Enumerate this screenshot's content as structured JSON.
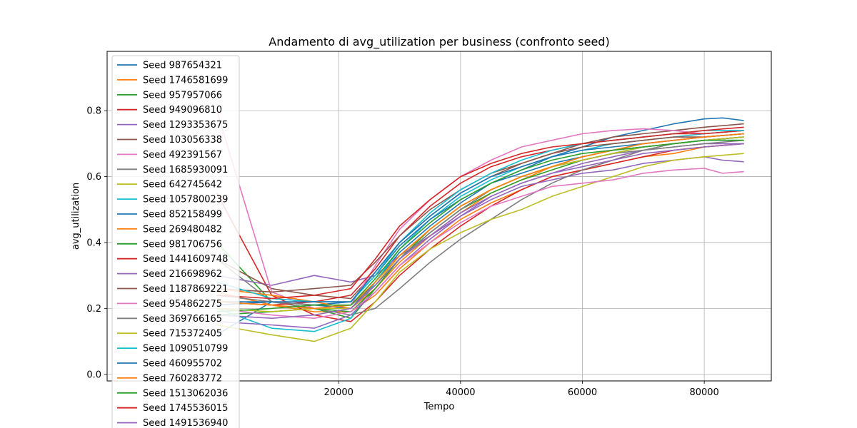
{
  "chart_data": {
    "type": "line",
    "title": "Andamento di avg_utilization per business (confronto seed)",
    "xlabel": "Tempo",
    "ylabel": "avg_utilization",
    "xlim": [
      -18000,
      91000
    ],
    "ylim": [
      -0.02,
      0.98
    ],
    "xticks": [
      20000,
      40000,
      60000,
      80000
    ],
    "yticks": [
      0.0,
      0.2,
      0.4,
      0.6,
      0.8
    ],
    "xtick_labels": [
      "20000",
      "40000",
      "60000",
      "80000"
    ],
    "ytick_labels": [
      "0.0",
      "0.2",
      "0.4",
      "0.6",
      "0.8"
    ],
    "grid": true,
    "legend_placement": "upper-left (overflowing bottom)",
    "series": [
      {
        "name": "Seed 987654321",
        "color": "#1f77b4",
        "x": [
          0,
          9000,
          16000,
          22000,
          26000,
          30000,
          35000,
          40000,
          45000,
          50000,
          55000,
          60000,
          65000,
          70000,
          75000,
          80000,
          83000,
          86500
        ],
        "values": [
          0.12,
          0.22,
          0.21,
          0.2,
          0.28,
          0.37,
          0.45,
          0.52,
          0.58,
          0.62,
          0.66,
          0.69,
          0.72,
          0.74,
          0.76,
          0.775,
          0.778,
          0.77
        ]
      },
      {
        "name": "Seed 1746581699",
        "color": "#ff7f0e",
        "x": [
          0,
          9000,
          16000,
          22000,
          26000,
          30000,
          35000,
          40000,
          45000,
          50000,
          55000,
          60000,
          65000,
          70000,
          75000,
          80000,
          86500
        ],
        "values": [
          0.25,
          0.21,
          0.19,
          0.19,
          0.24,
          0.32,
          0.4,
          0.47,
          0.52,
          0.56,
          0.6,
          0.62,
          0.64,
          0.66,
          0.67,
          0.69,
          0.7
        ]
      },
      {
        "name": "Seed 957957066",
        "color": "#2ca02c",
        "x": [
          0,
          9000,
          16000,
          22000,
          26000,
          30000,
          35000,
          40000,
          45000,
          50000,
          55000,
          60000,
          65000,
          70000,
          75000,
          80000,
          86500
        ],
        "values": [
          0.4,
          0.22,
          0.2,
          0.17,
          0.26,
          0.35,
          0.44,
          0.51,
          0.56,
          0.6,
          0.63,
          0.65,
          0.67,
          0.69,
          0.7,
          0.71,
          0.72
        ]
      },
      {
        "name": "Seed 949096810",
        "color": "#d62728",
        "x": [
          0,
          9000,
          16000,
          22000,
          26000,
          30000,
          35000,
          40000,
          45000,
          50000,
          55000,
          60000,
          65000,
          70000,
          75000,
          80000,
          86500
        ],
        "values": [
          0.55,
          0.24,
          0.18,
          0.16,
          0.22,
          0.3,
          0.38,
          0.45,
          0.51,
          0.56,
          0.6,
          0.62,
          0.64,
          0.66,
          0.68,
          0.69,
          0.7
        ]
      },
      {
        "name": "Seed 1293353675",
        "color": "#9467bd",
        "x": [
          0,
          9000,
          16000,
          22000,
          26000,
          30000,
          35000,
          40000,
          45000,
          50000,
          55000,
          60000,
          65000,
          70000,
          75000,
          80000,
          83000,
          86500
        ],
        "values": [
          0.3,
          0.27,
          0.3,
          0.28,
          0.3,
          0.36,
          0.42,
          0.48,
          0.53,
          0.57,
          0.59,
          0.61,
          0.62,
          0.64,
          0.65,
          0.66,
          0.65,
          0.645
        ]
      },
      {
        "name": "Seed 103056338",
        "color": "#8c564b",
        "x": [
          0,
          9000,
          16000,
          22000,
          26000,
          30000,
          35000,
          40000,
          45000,
          50000,
          55000,
          60000,
          65000,
          70000,
          75000,
          80000,
          86500
        ],
        "values": [
          0.35,
          0.26,
          0.24,
          0.23,
          0.31,
          0.4,
          0.48,
          0.55,
          0.6,
          0.64,
          0.67,
          0.7,
          0.72,
          0.73,
          0.74,
          0.75,
          0.76
        ]
      },
      {
        "name": "Seed 492391567",
        "color": "#e377c2",
        "x": [
          0,
          9000,
          16000,
          22000,
          26000,
          30000,
          35000,
          40000,
          45000,
          50000,
          55000,
          60000,
          65000,
          70000,
          75000,
          80000,
          86500
        ],
        "values": [
          0.8,
          0.25,
          0.2,
          0.21,
          0.33,
          0.44,
          0.53,
          0.6,
          0.65,
          0.69,
          0.71,
          0.73,
          0.74,
          0.745,
          0.74,
          0.73,
          0.74
        ]
      },
      {
        "name": "Seed 1685930091",
        "color": "#7f7f7f",
        "x": [
          0,
          9000,
          16000,
          22000,
          26000,
          30000,
          35000,
          40000,
          45000,
          50000,
          55000,
          60000,
          65000,
          70000,
          75000,
          80000,
          86500
        ],
        "values": [
          0.35,
          0.22,
          0.2,
          0.18,
          0.2,
          0.26,
          0.34,
          0.41,
          0.47,
          0.53,
          0.58,
          0.62,
          0.65,
          0.68,
          0.7,
          0.71,
          0.72
        ]
      },
      {
        "name": "Seed 642745642",
        "color": "#bcbd22",
        "x": [
          0,
          9000,
          16000,
          22000,
          26000,
          30000,
          35000,
          40000,
          45000,
          50000,
          55000,
          60000,
          65000,
          70000,
          75000,
          80000,
          86500
        ],
        "values": [
          0.15,
          0.12,
          0.1,
          0.14,
          0.22,
          0.31,
          0.38,
          0.43,
          0.47,
          0.5,
          0.54,
          0.57,
          0.6,
          0.63,
          0.65,
          0.66,
          0.67
        ]
      },
      {
        "name": "Seed 1057800239",
        "color": "#17becf",
        "x": [
          0,
          9000,
          16000,
          22000,
          26000,
          30000,
          35000,
          40000,
          45000,
          50000,
          55000,
          60000,
          65000,
          70000,
          75000,
          80000,
          86500
        ],
        "values": [
          0.2,
          0.14,
          0.13,
          0.17,
          0.28,
          0.38,
          0.47,
          0.54,
          0.59,
          0.63,
          0.66,
          0.68,
          0.7,
          0.71,
          0.72,
          0.73,
          0.74
        ]
      },
      {
        "name": "Seed 852158499",
        "color": "#1f77b4",
        "x": [
          0,
          9000,
          16000,
          22000,
          26000,
          30000,
          35000,
          40000,
          45000,
          50000,
          55000,
          60000,
          65000,
          70000,
          75000,
          80000,
          86500
        ],
        "values": [
          0.22,
          0.22,
          0.21,
          0.22,
          0.3,
          0.39,
          0.47,
          0.53,
          0.58,
          0.61,
          0.64,
          0.66,
          0.68,
          0.69,
          0.7,
          0.71,
          0.72
        ]
      },
      {
        "name": "Seed 269480482",
        "color": "#ff7f0e",
        "x": [
          0,
          9000,
          16000,
          22000,
          26000,
          30000,
          35000,
          40000,
          45000,
          50000,
          55000,
          60000,
          65000,
          70000,
          75000,
          80000,
          86500
        ],
        "values": [
          0.26,
          0.24,
          0.22,
          0.2,
          0.26,
          0.34,
          0.42,
          0.49,
          0.55,
          0.59,
          0.63,
          0.66,
          0.68,
          0.7,
          0.71,
          0.72,
          0.73
        ]
      },
      {
        "name": "Seed 981706756",
        "color": "#2ca02c",
        "x": [
          0,
          9000,
          16000,
          22000,
          26000,
          30000,
          35000,
          40000,
          45000,
          50000,
          55000,
          60000,
          65000,
          70000,
          75000,
          80000,
          86500
        ],
        "values": [
          0.18,
          0.19,
          0.2,
          0.19,
          0.26,
          0.35,
          0.43,
          0.5,
          0.55,
          0.59,
          0.62,
          0.65,
          0.67,
          0.69,
          0.7,
          0.71,
          0.71
        ]
      },
      {
        "name": "Seed 1441609748",
        "color": "#d62728",
        "x": [
          0,
          9000,
          16000,
          22000,
          26000,
          30000,
          35000,
          40000,
          45000,
          50000,
          55000,
          60000,
          65000,
          70000,
          75000,
          80000,
          86500
        ],
        "values": [
          0.22,
          0.21,
          0.22,
          0.24,
          0.32,
          0.42,
          0.51,
          0.58,
          0.63,
          0.66,
          0.68,
          0.7,
          0.71,
          0.72,
          0.73,
          0.73,
          0.74
        ]
      },
      {
        "name": "Seed 216698962",
        "color": "#9467bd",
        "x": [
          0,
          9000,
          16000,
          22000,
          26000,
          30000,
          35000,
          40000,
          45000,
          50000,
          55000,
          60000,
          65000,
          70000,
          75000,
          80000,
          86500
        ],
        "values": [
          0.16,
          0.15,
          0.14,
          0.18,
          0.25,
          0.33,
          0.41,
          0.48,
          0.54,
          0.58,
          0.61,
          0.64,
          0.66,
          0.68,
          0.69,
          0.7,
          0.7
        ]
      },
      {
        "name": "Seed 1187869221",
        "color": "#8c564b",
        "x": [
          0,
          9000,
          16000,
          22000,
          26000,
          30000,
          35000,
          40000,
          45000,
          50000,
          55000,
          60000,
          65000,
          70000,
          75000,
          80000,
          86500
        ],
        "values": [
          0.26,
          0.25,
          0.26,
          0.27,
          0.34,
          0.42,
          0.5,
          0.56,
          0.61,
          0.64,
          0.67,
          0.69,
          0.7,
          0.71,
          0.72,
          0.72,
          0.73
        ]
      },
      {
        "name": "Seed 954862275",
        "color": "#e377c2",
        "x": [
          0,
          9000,
          16000,
          22000,
          26000,
          30000,
          35000,
          40000,
          45000,
          50000,
          55000,
          60000,
          65000,
          70000,
          75000,
          80000,
          83000,
          86500
        ],
        "values": [
          0.2,
          0.18,
          0.17,
          0.19,
          0.25,
          0.33,
          0.4,
          0.46,
          0.51,
          0.54,
          0.57,
          0.58,
          0.59,
          0.61,
          0.62,
          0.625,
          0.61,
          0.615
        ]
      },
      {
        "name": "Seed 369766165",
        "color": "#7f7f7f",
        "x": [
          0,
          9000,
          16000,
          22000,
          26000,
          30000,
          35000,
          40000,
          45000,
          50000,
          55000,
          60000,
          65000,
          70000,
          75000,
          80000,
          86500
        ],
        "values": [
          0.24,
          0.22,
          0.21,
          0.21,
          0.27,
          0.35,
          0.43,
          0.5,
          0.56,
          0.6,
          0.63,
          0.65,
          0.67,
          0.68,
          0.69,
          0.7,
          0.71
        ]
      },
      {
        "name": "Seed 715372405",
        "color": "#bcbd22",
        "x": [
          0,
          9000,
          16000,
          22000,
          26000,
          30000,
          35000,
          40000,
          45000,
          50000,
          55000,
          60000,
          65000,
          70000,
          75000,
          80000,
          86500
        ],
        "values": [
          0.2,
          0.19,
          0.2,
          0.2,
          0.27,
          0.36,
          0.44,
          0.51,
          0.56,
          0.6,
          0.63,
          0.65,
          0.67,
          0.69,
          0.7,
          0.71,
          0.72
        ]
      },
      {
        "name": "Seed 1090510799",
        "color": "#17becf",
        "x": [
          0,
          9000,
          16000,
          22000,
          26000,
          30000,
          35000,
          40000,
          45000,
          50000,
          55000,
          60000,
          65000,
          70000,
          75000,
          80000,
          86500
        ],
        "values": [
          0.28,
          0.23,
          0.22,
          0.22,
          0.3,
          0.4,
          0.49,
          0.56,
          0.61,
          0.65,
          0.68,
          0.7,
          0.71,
          0.72,
          0.73,
          0.74,
          0.74
        ]
      },
      {
        "name": "Seed 460955702",
        "color": "#1f77b4",
        "x": [
          0,
          9000,
          16000,
          22000,
          26000,
          30000,
          35000,
          40000,
          45000,
          50000,
          55000,
          60000,
          65000,
          70000,
          75000,
          80000,
          86500
        ],
        "values": [
          0.21,
          0.22,
          0.22,
          0.22,
          0.31,
          0.4,
          0.48,
          0.55,
          0.6,
          0.63,
          0.66,
          0.68,
          0.69,
          0.7,
          0.71,
          0.72,
          0.73
        ]
      },
      {
        "name": "Seed 760283772",
        "color": "#ff7f0e",
        "x": [
          0,
          9000,
          16000,
          22000,
          26000,
          30000,
          35000,
          40000,
          45000,
          50000,
          55000,
          60000,
          65000,
          70000,
          75000,
          80000,
          86500
        ],
        "values": [
          0.22,
          0.21,
          0.2,
          0.21,
          0.28,
          0.36,
          0.44,
          0.51,
          0.56,
          0.6,
          0.63,
          0.66,
          0.68,
          0.7,
          0.71,
          0.72,
          0.73
        ]
      },
      {
        "name": "Seed 1513062036",
        "color": "#2ca02c",
        "x": [
          0,
          9000,
          16000,
          22000,
          26000,
          30000,
          35000,
          40000,
          45000,
          50000,
          55000,
          60000,
          65000,
          70000,
          75000,
          80000,
          86500
        ],
        "values": [
          0.19,
          0.2,
          0.21,
          0.21,
          0.29,
          0.38,
          0.46,
          0.53,
          0.58,
          0.62,
          0.65,
          0.67,
          0.68,
          0.69,
          0.7,
          0.71,
          0.71
        ]
      },
      {
        "name": "Seed 1745536015",
        "color": "#d62728",
        "x": [
          0,
          9000,
          16000,
          22000,
          26000,
          30000,
          35000,
          40000,
          45000,
          50000,
          55000,
          60000,
          65000,
          70000,
          75000,
          80000,
          86500
        ],
        "values": [
          0.24,
          0.23,
          0.24,
          0.26,
          0.35,
          0.45,
          0.53,
          0.6,
          0.64,
          0.67,
          0.69,
          0.7,
          0.71,
          0.72,
          0.73,
          0.74,
          0.75
        ]
      },
      {
        "name": "Seed 1491536940",
        "color": "#9467bd",
        "x": [
          0,
          9000,
          16000,
          22000,
          26000,
          30000,
          35000,
          40000,
          45000,
          50000,
          55000,
          60000,
          65000,
          70000,
          75000,
          80000,
          86500
        ],
        "values": [
          0.18,
          0.17,
          0.18,
          0.2,
          0.27,
          0.35,
          0.42,
          0.49,
          0.54,
          0.58,
          0.61,
          0.63,
          0.65,
          0.67,
          0.68,
          0.69,
          0.7
        ]
      }
    ]
  }
}
